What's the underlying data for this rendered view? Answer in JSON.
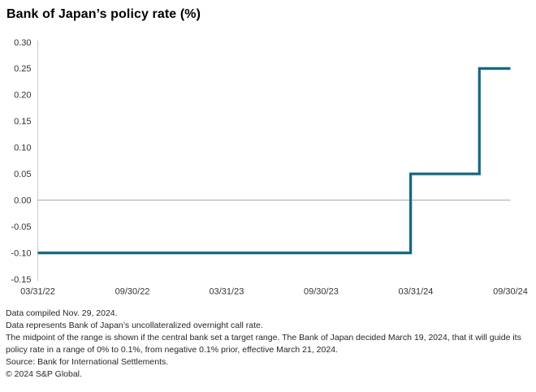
{
  "title": "Bank of Japan’s policy rate (%)",
  "chart_data": {
    "type": "line",
    "step": true,
    "title": "Bank of Japan’s policy rate (%)",
    "xlabel": "",
    "ylabel": "",
    "ylim": [
      -0.15,
      0.3
    ],
    "grid": "zero-line-only",
    "legend": "none",
    "x_tick_labels": [
      "03/31/22",
      "09/30/22",
      "03/31/23",
      "09/30/23",
      "03/31/24",
      "09/30/24"
    ],
    "y_tick_labels": [
      "0.30",
      "0.25",
      "0.20",
      "0.15",
      "0.10",
      "0.05",
      "0.00",
      "-0.05",
      "-0.10",
      "-0.15"
    ],
    "series": [
      {
        "name": "Policy rate",
        "points": [
          {
            "date": "03/31/22",
            "value": -0.1
          },
          {
            "date": "03/21/24",
            "value": -0.1
          },
          {
            "date": "03/21/24",
            "value": 0.05
          },
          {
            "date": "08/01/24",
            "value": 0.05
          },
          {
            "date": "08/01/24",
            "value": 0.25
          },
          {
            "date": "09/30/24",
            "value": 0.25
          }
        ]
      }
    ],
    "colors": {
      "line": "#16657E",
      "line_halo": "#aecbd9",
      "zero_line": "#a6a6a6",
      "axis": "#c9c9c9",
      "tick_text": "#333333"
    }
  },
  "footnotes": [
    "Data compiled Nov. 29, 2024.",
    "Data represents Bank of Japan’s uncollateralized overnight call rate.",
    "The midpoint of the range is shown if the central bank set a target range. The Bank of Japan decided March 19, 2024, that it will guide its policy rate in a range of 0% to 0.1%, from negative 0.1% prior, effective March 21, 2024.",
    "Source: Bank for International Settlements.",
    "© 2024 S&P Global."
  ]
}
